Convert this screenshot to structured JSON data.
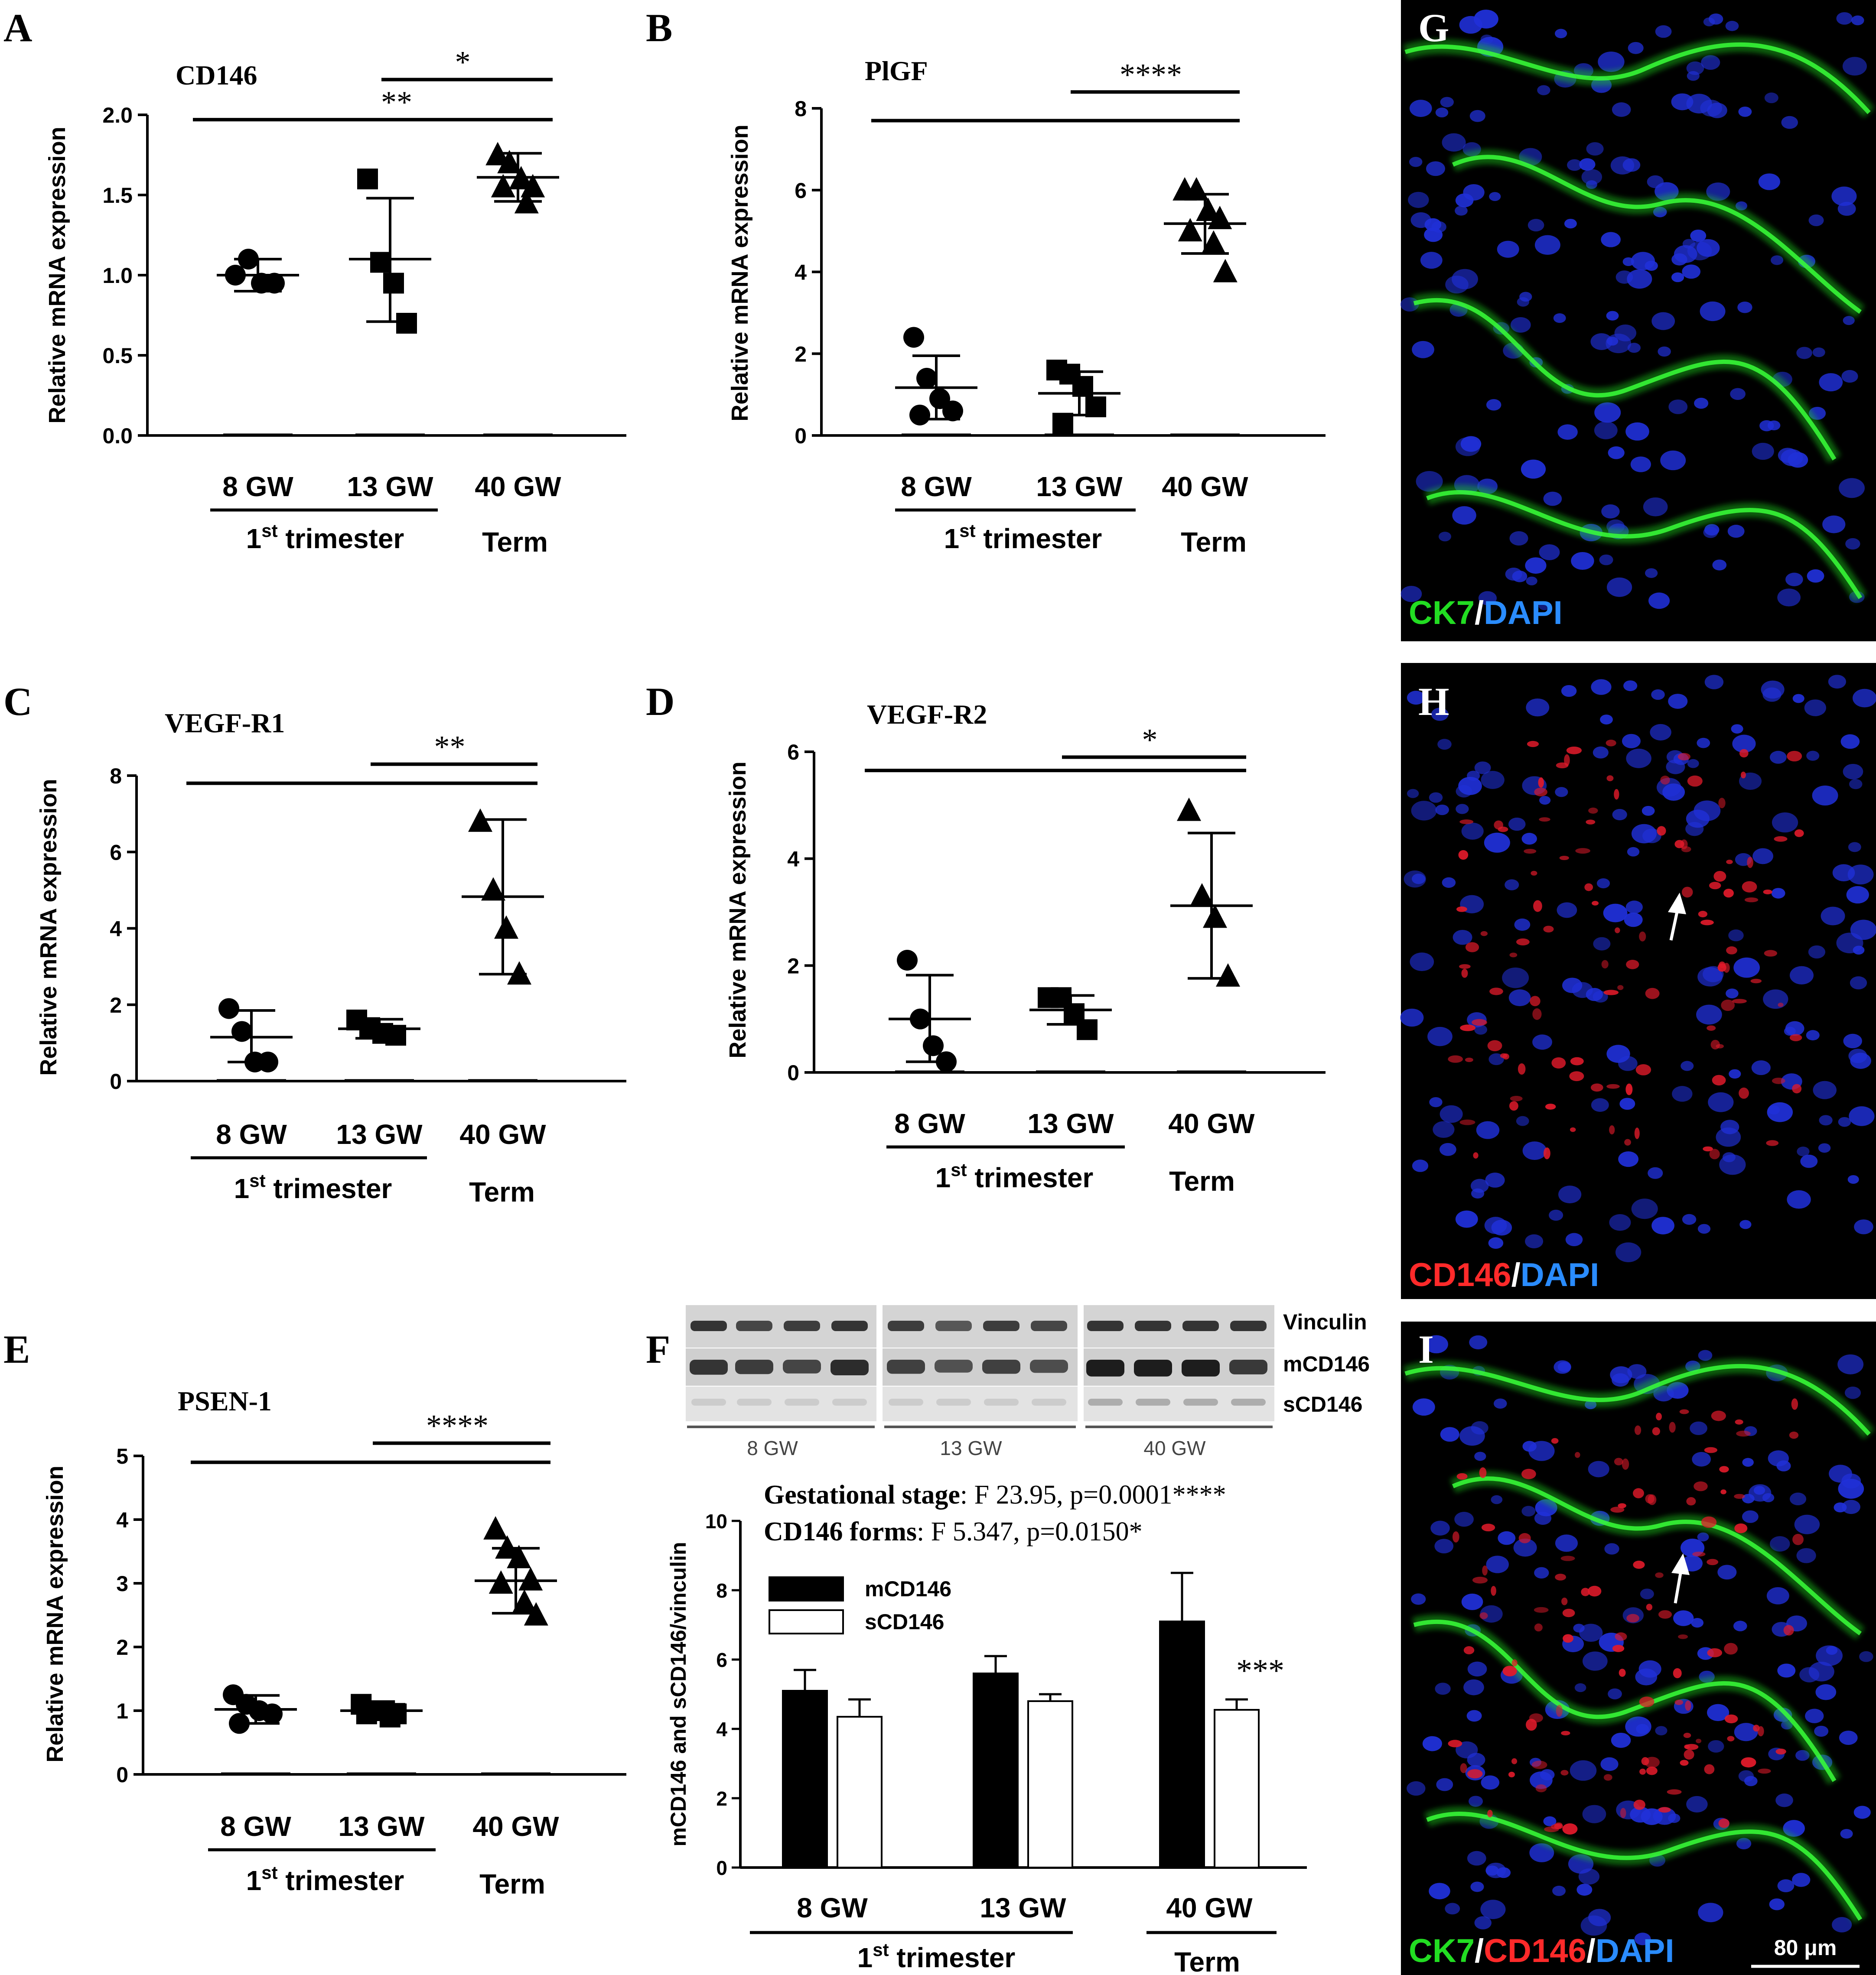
{
  "panel_letters": [
    "A",
    "B",
    "C",
    "D",
    "E",
    "F",
    "G",
    "H",
    "I"
  ],
  "shared": {
    "ylabel": "Relative mRNA expression",
    "group_labels": [
      "8 GW",
      "13 GW",
      "40 GW"
    ],
    "trimester_label": "1",
    "trimester_sup": "st",
    "trimester_rest": " trimester",
    "term_label": "Term"
  },
  "western_blot": {
    "row_labels": [
      "Vinculin",
      "mCD146",
      "sCD146"
    ],
    "group_labels": [
      "8 GW",
      "13 GW",
      "40 GW"
    ]
  },
  "bar_chart": {
    "stats": [
      {
        "bold": "Gestational stage",
        "rest": ": F 23.95, p=0.0001****"
      },
      {
        "bold": "CD146 forms",
        "rest": ": F 5.347, p=0.0150*"
      }
    ],
    "sig_label": "***"
  },
  "micrographs": {
    "G": [
      {
        "text": "CK7",
        "color": "#22dd22"
      },
      {
        "text": "/",
        "color": "#ffffff"
      },
      {
        "text": "DAPI",
        "color": "#2a8cff"
      }
    ],
    "H": [
      {
        "text": "CD146",
        "color": "#ff2a2a"
      },
      {
        "text": "/",
        "color": "#ffffff"
      },
      {
        "text": "DAPI",
        "color": "#2a8cff"
      }
    ],
    "I": [
      {
        "text": "CK7",
        "color": "#22dd22"
      },
      {
        "text": "/",
        "color": "#ffffff"
      },
      {
        "text": "CD146",
        "color": "#ff2a2a"
      },
      {
        "text": "/",
        "color": "#ffffff"
      },
      {
        "text": "DAPI",
        "color": "#2a8cff"
      }
    ],
    "scale_bar_label": "80 μm"
  },
  "chart_data": [
    {
      "panel": "A",
      "type": "scatter",
      "title": "CD146",
      "ylabel": "Relative mRNA expression",
      "categories": [
        "8 GW",
        "13 GW",
        "40 GW"
      ],
      "yticks": [
        "0.0",
        "0.5",
        "1.0",
        "1.5",
        "2.0"
      ],
      "ylim": [
        0,
        2.0
      ],
      "groups": [
        {
          "marker": "circle",
          "points": [
            1.0,
            1.1,
            0.95,
            0.95
          ],
          "mean": 1.0,
          "sd_low": 0.9,
          "sd_high": 1.1
        },
        {
          "marker": "square",
          "points": [
            1.6,
            1.08,
            0.95,
            0.7
          ],
          "mean": 1.1,
          "sd_low": 0.71,
          "sd_high": 1.48
        },
        {
          "marker": "triangle",
          "points": [
            1.75,
            1.7,
            1.6,
            1.55,
            1.55,
            1.45
          ],
          "mean": 1.61,
          "sd_low": 1.46,
          "sd_high": 1.76
        }
      ],
      "brackets": [
        {
          "label": "*",
          "from": 1,
          "to": 2,
          "y": 2.22
        },
        {
          "label": "**",
          "from": 0,
          "to": 2,
          "y": 1.97
        }
      ]
    },
    {
      "panel": "B",
      "type": "scatter",
      "title": "PlGF",
      "ylabel": "Relative mRNA expression",
      "categories": [
        "8 GW",
        "13 GW",
        "40 GW"
      ],
      "yticks": [
        "0",
        "2",
        "4",
        "6",
        "8"
      ],
      "ylim": [
        0,
        8
      ],
      "groups": [
        {
          "marker": "circle",
          "points": [
            2.4,
            1.4,
            0.9,
            0.6,
            0.5
          ],
          "mean": 1.17,
          "sd_low": 0.4,
          "sd_high": 1.95
        },
        {
          "marker": "square",
          "points": [
            1.6,
            1.5,
            1.2,
            0.7,
            0.3
          ],
          "mean": 1.03,
          "sd_low": 0.5,
          "sd_high": 1.56
        },
        {
          "marker": "triangle",
          "points": [
            6.0,
            6.0,
            5.5,
            5.3,
            5.0,
            4.7,
            4.0
          ],
          "mean": 5.18,
          "sd_low": 4.45,
          "sd_high": 5.9
        }
      ],
      "brackets": [
        {
          "label": "****",
          "from": 1,
          "to": 2,
          "y": 8.4
        },
        {
          "label": "",
          "from": 0,
          "to": 2,
          "y": 7.7
        }
      ]
    },
    {
      "panel": "C",
      "type": "scatter",
      "title": "VEGF-R1",
      "ylabel": "Relative mRNA expression",
      "categories": [
        "8 GW",
        "13 GW",
        "40 GW"
      ],
      "yticks": [
        "0",
        "2",
        "4",
        "6",
        "8"
      ],
      "ylim": [
        0,
        8
      ],
      "groups": [
        {
          "marker": "circle",
          "points": [
            1.9,
            1.3,
            0.5,
            0.5
          ],
          "mean": 1.15,
          "sd_low": 0.5,
          "sd_high": 1.85
        },
        {
          "marker": "square",
          "points": [
            1.6,
            1.4,
            1.25,
            1.2
          ],
          "mean": 1.37,
          "sd_low": 1.12,
          "sd_high": 1.62
        },
        {
          "marker": "triangle",
          "points": [
            6.8,
            5.0,
            4.0,
            2.8
          ],
          "mean": 4.83,
          "sd_low": 2.8,
          "sd_high": 6.85
        }
      ],
      "brackets": [
        {
          "label": "**",
          "from": 1,
          "to": 2,
          "y": 8.3
        },
        {
          "label": "",
          "from": 0,
          "to": 2,
          "y": 7.8
        }
      ]
    },
    {
      "panel": "D",
      "type": "scatter",
      "title": "VEGF-R2",
      "ylabel": "Relative mRNA expression",
      "categories": [
        "8 GW",
        "13 GW",
        "40 GW"
      ],
      "yticks": [
        "0",
        "2",
        "4",
        "6"
      ],
      "ylim": [
        0,
        6
      ],
      "groups": [
        {
          "marker": "circle",
          "points": [
            2.1,
            1.0,
            0.5,
            0.2
          ],
          "mean": 1.0,
          "sd_low": 0.2,
          "sd_high": 1.82
        },
        {
          "marker": "square",
          "points": [
            1.4,
            1.4,
            1.1,
            0.8
          ],
          "mean": 1.17,
          "sd_low": 0.9,
          "sd_high": 1.44
        },
        {
          "marker": "triangle",
          "points": [
            4.9,
            3.3,
            2.9,
            1.8
          ],
          "mean": 3.12,
          "sd_low": 1.76,
          "sd_high": 4.48
        }
      ],
      "brackets": [
        {
          "label": "*",
          "from": 1,
          "to": 2,
          "y": 5.9
        },
        {
          "label": "",
          "from": 0,
          "to": 2,
          "y": 5.65
        }
      ]
    },
    {
      "panel": "E",
      "type": "scatter",
      "title": "PSEN-1",
      "ylabel": "Relative mRNA expression",
      "categories": [
        "8 GW",
        "13 GW",
        "40 GW"
      ],
      "yticks": [
        "0",
        "1",
        "2",
        "3",
        "4",
        "5"
      ],
      "ylim": [
        0,
        5
      ],
      "groups": [
        {
          "marker": "circle",
          "points": [
            1.25,
            1.1,
            1.0,
            0.95,
            0.8
          ],
          "mean": 1.02,
          "sd_low": 0.8,
          "sd_high": 1.24
        },
        {
          "marker": "square",
          "points": [
            1.1,
            1.0,
            1.0,
            0.95,
            0.95,
            0.9
          ],
          "mean": 1.0,
          "sd_low": 0.9,
          "sd_high": 1.1
        },
        {
          "marker": "triangle",
          "points": [
            3.85,
            3.55,
            3.4,
            3.05,
            3.0,
            2.7,
            2.5
          ],
          "mean": 3.04,
          "sd_low": 2.53,
          "sd_high": 3.55
        }
      ],
      "brackets": [
        {
          "label": "****",
          "from": 1,
          "to": 2,
          "y": 5.2
        },
        {
          "label": "",
          "from": 0,
          "to": 2,
          "y": 4.9
        }
      ]
    },
    {
      "panel": "F",
      "type": "bar",
      "ylabel": "mCD146 and sCD146/vinculin",
      "categories": [
        "8 GW",
        "13 GW",
        "40 GW"
      ],
      "yticks": [
        "0",
        "2",
        "4",
        "6",
        "8",
        "10"
      ],
      "ylim": [
        0,
        10
      ],
      "series": [
        {
          "name": "mCD146",
          "color": "#000000",
          "values": [
            5.1,
            5.6,
            7.1
          ],
          "error": [
            0.6,
            0.5,
            1.4
          ]
        },
        {
          "name": "sCD146",
          "color": "#ffffff",
          "values": [
            4.35,
            4.8,
            4.55
          ],
          "error": [
            0.5,
            0.2,
            0.3
          ]
        }
      ]
    }
  ]
}
